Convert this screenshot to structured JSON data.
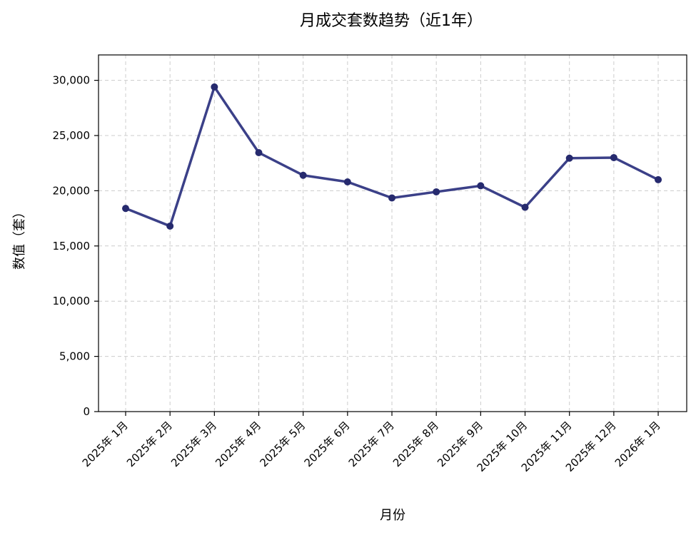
{
  "chart_data": {
    "type": "line",
    "title": "月成交套数趋势（近1年）",
    "xlabel": "月份",
    "ylabel": "数值（套）",
    "categories": [
      "2025年 1月",
      "2025年 2月",
      "2025年 3月",
      "2025年 4月",
      "2025年 5月",
      "2025年 6月",
      "2025年 7月",
      "2025年 8月",
      "2025年 9月",
      "2025年 10月",
      "2025年 11月",
      "2025年 12月",
      "2026年 1月"
    ],
    "series": [
      {
        "values": [
          18400,
          16800,
          29400,
          23450,
          21400,
          20800,
          19350,
          19900,
          20450,
          18500,
          22950,
          23000,
          21000
        ],
        "color": "#3b4088",
        "marker_color": "#262a6e"
      }
    ],
    "ylim": [
      0,
      32300
    ],
    "yticks": [
      0,
      5000,
      10000,
      15000,
      20000,
      25000,
      30000
    ],
    "ytick_labels": [
      "0",
      "5,000",
      "10,000",
      "15,000",
      "20,000",
      "25,000",
      "30,000"
    ],
    "grid": true
  }
}
